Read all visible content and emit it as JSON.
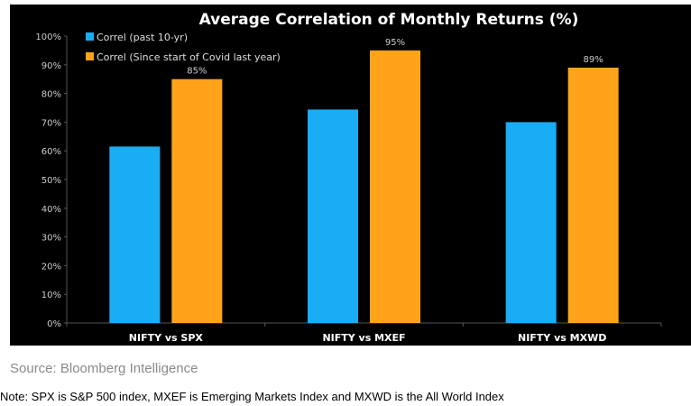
{
  "chart_data": {
    "type": "bar",
    "title": "Average Correlation of Monthly Returns (%)",
    "categories": [
      "NIFTY vs SPX",
      "NIFTY vs MXEF",
      "NIFTY vs MXWD"
    ],
    "series": [
      {
        "name": "Correl (past 10-yr)",
        "color": "#1AADF5",
        "values": [
          61.5,
          74.4,
          70
        ],
        "data_labels": [
          "",
          "",
          ""
        ]
      },
      {
        "name": "Correl (Since start of Covid last year)",
        "color": "#FFA31A",
        "values": [
          85,
          95,
          89
        ],
        "data_labels": [
          "85%",
          "95%",
          "89%"
        ]
      }
    ],
    "yticks": [
      "0%",
      "10%",
      "20%",
      "30%",
      "40%",
      "50%",
      "60%",
      "70%",
      "80%",
      "90%",
      "100%"
    ],
    "ylim": [
      0,
      100
    ],
    "grid": false,
    "legend_placement": "top-left",
    "background": "#000000"
  },
  "footer": {
    "source": "Source: Bloomberg Intelligence",
    "note": "Note: SPX is S&P 500 index, MXEF is Emerging Markets Index and MXWD is the All World Index"
  }
}
